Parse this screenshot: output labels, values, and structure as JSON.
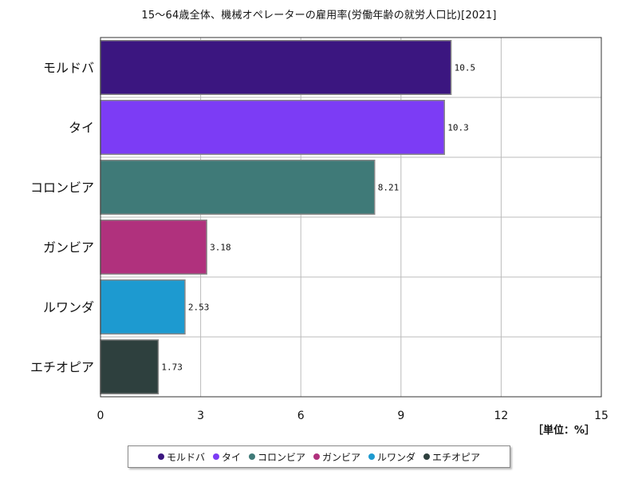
{
  "chart_data": {
    "type": "bar",
    "orientation": "horizontal",
    "title": "15〜64歳全体、機械オペレーターの雇用率(労働年齢の就労人口比)[2021]",
    "unit": "［単位：%］",
    "categories": [
      "モルドバ",
      "タイ",
      "コロンビア",
      "ガンビア",
      "ルワンダ",
      "エチオピア"
    ],
    "values": [
      10.5,
      10.3,
      8.21,
      3.18,
      2.53,
      1.73
    ],
    "value_labels": [
      "10.5",
      "10.3",
      "8.21",
      "3.18",
      "2.53",
      "1.73"
    ],
    "colors": [
      "#3b1680",
      "#7c3cf5",
      "#3f7a78",
      "#b0317d",
      "#1d9ad0",
      "#2e403e"
    ],
    "xlim": [
      0,
      15
    ],
    "xticks": [
      0,
      3,
      6,
      9,
      12,
      15
    ],
    "grid": true,
    "legend_position": "bottom"
  }
}
